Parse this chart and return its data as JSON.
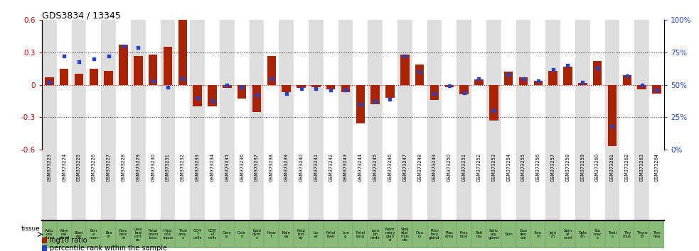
{
  "title": "GDS3834 / 13345",
  "gsm_labels": [
    "GSM373223",
    "GSM373224",
    "GSM373225",
    "GSM373226",
    "GSM373227",
    "GSM373228",
    "GSM373229",
    "GSM373230",
    "GSM373231",
    "GSM373232",
    "GSM373233",
    "GSM373234",
    "GSM373235",
    "GSM373236",
    "GSM373237",
    "GSM373238",
    "GSM373239",
    "GSM373240",
    "GSM373241",
    "GSM373242",
    "GSM373243",
    "GSM373244",
    "GSM373245",
    "GSM373246",
    "GSM373247",
    "GSM373248",
    "GSM373249",
    "GSM373250",
    "GSM373251",
    "GSM373252",
    "GSM373253",
    "GSM373254",
    "GSM373255",
    "GSM373256",
    "GSM373257",
    "GSM373258",
    "GSM373259",
    "GSM373260",
    "GSM373261",
    "GSM373262",
    "GSM373263",
    "GSM373264"
  ],
  "tissue_labels": [
    "Adip\nose\ngland",
    "Adre\nnal\ngland",
    "Blad\nder",
    "Bon\ne\nmarr",
    "Bra\nin",
    "Cere\nbelu\nm",
    "Cere\nbral\ncort\nex",
    "Fetal\nbrain\nloca",
    "Hipp\noca\nmpus",
    "Thal\namu\ns",
    "CD4\nT\ncells",
    "CD8\n+T\ncells",
    "Cerv\nix",
    "Colo\nn",
    "Epid\ndym\ns",
    "Hear\nt",
    "Kidn\ney",
    "Feta\nlkid\ney",
    "Liv\ner",
    "Fetal\nliver",
    "Lun\ng",
    "Fetal\nlung",
    "Lym\nph\nnode",
    "Mam\nmary\nglan\nd",
    "Skel\netal\nmus\ncle",
    "Ova\nry",
    "Pitui\ntary\ngland",
    "Plac\nenta",
    "Pros\ntate",
    "Reti\nnal",
    "Saliv\nary\ngland",
    "Skin",
    "Duo\nden\num",
    "Ileu\nm",
    "Jeju\nm",
    "Spin\nal\ncord",
    "Sple\nen",
    "Sto\nmac\ns",
    "Testi\ns",
    "Thy\nmus",
    "Thyro\nid",
    "Trac\nhea"
  ],
  "log10_ratio": [
    0.07,
    0.15,
    0.1,
    0.15,
    0.13,
    0.37,
    0.27,
    0.28,
    0.35,
    0.62,
    -0.2,
    -0.2,
    -0.03,
    -0.13,
    -0.25,
    0.27,
    -0.07,
    -0.03,
    -0.02,
    -0.04,
    -0.07,
    -0.36,
    -0.18,
    -0.12,
    0.28,
    0.19,
    -0.14,
    -0.02,
    -0.09,
    0.05,
    -0.33,
    0.12,
    0.07,
    0.04,
    0.13,
    0.17,
    0.02,
    0.22,
    -0.57,
    0.09,
    -0.04,
    -0.08
  ],
  "percentile_rank": [
    52,
    72,
    68,
    70,
    72,
    80,
    79,
    53,
    48,
    55,
    40,
    38,
    50,
    48,
    42,
    55,
    43,
    47,
    47,
    46,
    46,
    35,
    37,
    39,
    72,
    60,
    43,
    49,
    44,
    55,
    30,
    58,
    55,
    53,
    62,
    65,
    52,
    63,
    18,
    57,
    50,
    46
  ],
  "bar_color": "#aa2200",
  "dot_color": "#2244cc",
  "ylim_left": [
    -0.6,
    0.6
  ],
  "ylim_right": [
    0,
    100
  ],
  "yticks_left": [
    -0.6,
    -0.3,
    0.0,
    0.3,
    0.6
  ],
  "yticks_right": [
    0,
    25,
    50,
    75,
    100
  ],
  "ytick_labels_right": [
    "0%",
    "25%",
    "50%",
    "75%",
    "100%"
  ],
  "hline_color": "#cc0000",
  "dotted_color": "#333333",
  "bg_color_light": "#ffffff",
  "bg_color_dark": "#dddddd",
  "tissue_bg_color": "#88bb77",
  "legend_bar_label": "log10 ratio",
  "legend_dot_label": "percentile rank within the sample"
}
